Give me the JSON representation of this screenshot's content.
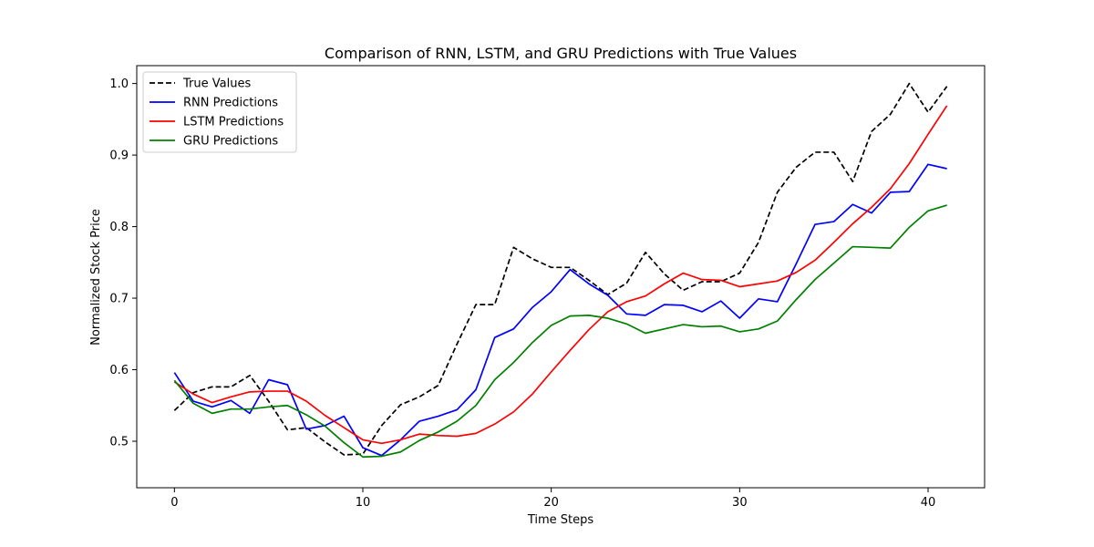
{
  "chart_data": {
    "type": "line",
    "title": "Comparison of RNN, LSTM, and GRU Predictions with True Values",
    "xlabel": "Time Steps",
    "ylabel": "Normalized Stock Price",
    "xlim": [
      -2,
      43
    ],
    "ylim": [
      0.435,
      1.025
    ],
    "xticks": [
      0,
      10,
      20,
      30,
      40
    ],
    "yticks": [
      0.5,
      0.6,
      0.7,
      0.8,
      0.9,
      1.0
    ],
    "xtick_labels": [
      "0",
      "10",
      "20",
      "30",
      "40"
    ],
    "ytick_labels": [
      "0.5",
      "0.6",
      "0.7",
      "0.8",
      "0.9",
      "1.0"
    ],
    "grid": false,
    "legend_position": "top-left",
    "x": [
      0,
      1,
      2,
      3,
      4,
      5,
      6,
      7,
      8,
      9,
      10,
      11,
      12,
      13,
      14,
      15,
      16,
      17,
      18,
      19,
      20,
      21,
      22,
      23,
      24,
      25,
      26,
      27,
      28,
      29,
      30,
      31,
      32,
      33,
      34,
      35,
      36,
      37,
      38,
      39,
      40,
      41
    ],
    "series": [
      {
        "name": "True Values",
        "color": "#000000",
        "dash": "dashed",
        "values": [
          0.543,
          0.568,
          0.576,
          0.576,
          0.592,
          0.556,
          0.516,
          0.519,
          0.499,
          0.481,
          0.482,
          0.522,
          0.551,
          0.562,
          0.578,
          0.636,
          0.691,
          0.691,
          0.771,
          0.755,
          0.743,
          0.743,
          0.725,
          0.705,
          0.721,
          0.764,
          0.734,
          0.711,
          0.723,
          0.723,
          0.735,
          0.778,
          0.848,
          0.883,
          0.904,
          0.904,
          0.863,
          0.933,
          0.957,
          1.0,
          0.96,
          0.996
        ]
      },
      {
        "name": "RNN Predictions",
        "color": "#0000ff",
        "dash": "solid",
        "values": [
          0.596,
          0.556,
          0.548,
          0.557,
          0.539,
          0.586,
          0.579,
          0.517,
          0.522,
          0.535,
          0.491,
          0.48,
          0.502,
          0.528,
          0.535,
          0.544,
          0.572,
          0.645,
          0.657,
          0.687,
          0.709,
          0.74,
          0.72,
          0.704,
          0.678,
          0.676,
          0.691,
          0.69,
          0.681,
          0.696,
          0.672,
          0.699,
          0.695,
          0.748,
          0.803,
          0.807,
          0.831,
          0.819,
          0.848,
          0.849,
          0.887,
          0.881
        ]
      },
      {
        "name": "LSTM Predictions",
        "color": "#ff0000",
        "dash": "solid",
        "values": [
          0.583,
          0.566,
          0.554,
          0.562,
          0.569,
          0.57,
          0.57,
          0.556,
          0.536,
          0.519,
          0.502,
          0.497,
          0.502,
          0.51,
          0.508,
          0.507,
          0.511,
          0.524,
          0.541,
          0.566,
          0.597,
          0.627,
          0.656,
          0.681,
          0.695,
          0.703,
          0.72,
          0.735,
          0.726,
          0.725,
          0.716,
          0.72,
          0.724,
          0.736,
          0.753,
          0.778,
          0.804,
          0.827,
          0.853,
          0.888,
          0.929,
          0.969
        ]
      },
      {
        "name": "GRU Predictions",
        "color": "#008000",
        "dash": "solid",
        "values": [
          0.585,
          0.553,
          0.539,
          0.545,
          0.545,
          0.548,
          0.55,
          0.537,
          0.521,
          0.498,
          0.478,
          0.479,
          0.485,
          0.501,
          0.513,
          0.528,
          0.55,
          0.586,
          0.61,
          0.638,
          0.662,
          0.675,
          0.676,
          0.672,
          0.664,
          0.651,
          0.657,
          0.663,
          0.66,
          0.661,
          0.653,
          0.657,
          0.668,
          0.698,
          0.726,
          0.749,
          0.772,
          0.771,
          0.77,
          0.799,
          0.822,
          0.83
        ]
      }
    ]
  }
}
